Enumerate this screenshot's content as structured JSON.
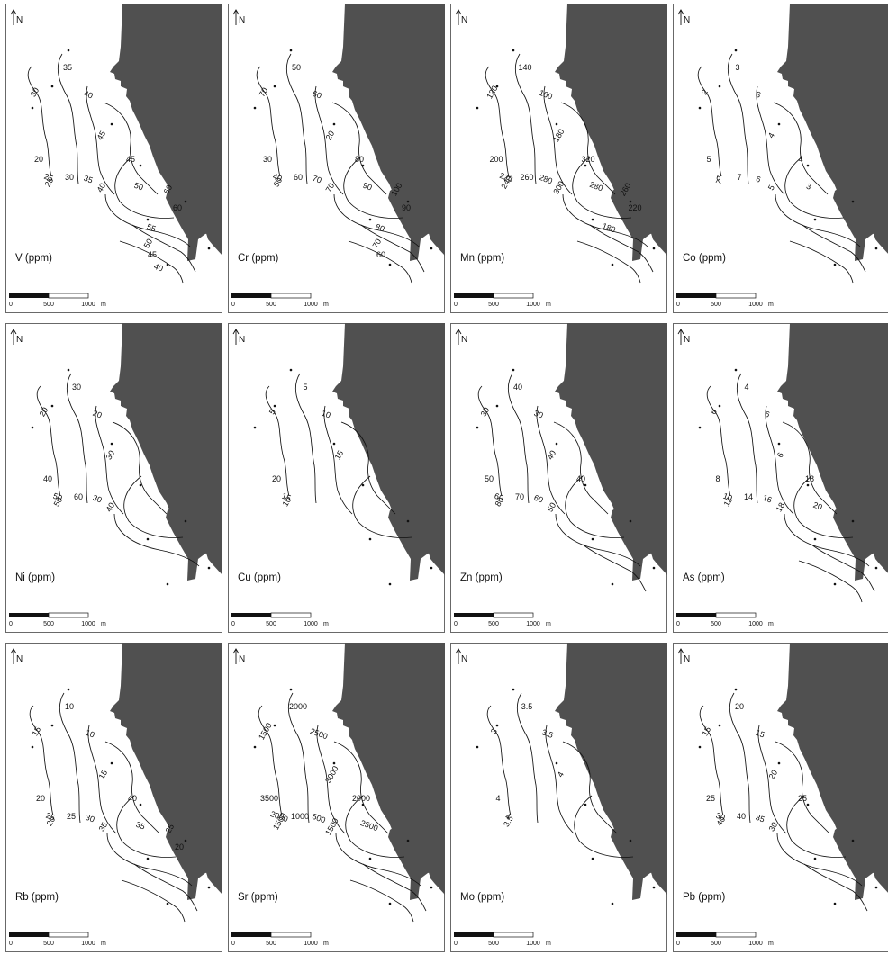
{
  "north_label": "N",
  "scale_labels": [
    "0",
    "500",
    "1000",
    "m"
  ],
  "panels": [
    {
      "id": "v",
      "title": "V (ppm)",
      "labels": [
        "30",
        "35",
        "40",
        "45",
        "20",
        "25",
        "25",
        "30",
        "35",
        "40",
        "45",
        "50",
        "60",
        "60",
        "55",
        "50",
        "45",
        "40"
      ]
    },
    {
      "id": "cr",
      "title": "Cr (ppm)",
      "labels": [
        "70",
        "50",
        "60",
        "20",
        "30",
        "40",
        "50",
        "60",
        "70",
        "70",
        "80",
        "90",
        "100",
        "90",
        "80",
        "70",
        "60"
      ]
    },
    {
      "id": "mn",
      "title": "Mn (ppm)",
      "labels": [
        "120",
        "140",
        "160",
        "180",
        "200",
        "220",
        "240",
        "260",
        "280",
        "300",
        "320",
        "280",
        "260",
        "220",
        "180"
      ]
    },
    {
      "id": "co",
      "title": "Co (ppm)",
      "labels": [
        "2",
        "3",
        "3",
        "4",
        "5",
        "6",
        "7",
        "7",
        "6",
        "5",
        "4",
        "3"
      ]
    },
    {
      "id": "ni",
      "title": "Ni (ppm)",
      "labels": [
        "20",
        "30",
        "20",
        "30",
        "40",
        "50",
        "50",
        "60",
        "30",
        "40"
      ]
    },
    {
      "id": "cu",
      "title": "Cu (ppm)",
      "labels": [
        "5",
        "5",
        "10",
        "15",
        "20",
        "15",
        "10"
      ]
    },
    {
      "id": "zn",
      "title": "Zn (ppm)",
      "labels": [
        "30",
        "40",
        "30",
        "40",
        "50",
        "60",
        "80",
        "70",
        "60",
        "50",
        "40"
      ]
    },
    {
      "id": "as",
      "title": "As (ppm)",
      "labels": [
        "6",
        "4",
        "6",
        "6",
        "8",
        "10",
        "12",
        "14",
        "16",
        "18",
        "18",
        "20"
      ]
    },
    {
      "id": "rb",
      "title": "Rb (ppm)",
      "labels": [
        "15",
        "10",
        "10",
        "15",
        "20",
        "25",
        "20",
        "25",
        "30",
        "35",
        "40",
        "35",
        "25",
        "20"
      ]
    },
    {
      "id": "sr",
      "title": "Sr (ppm)",
      "labels": [
        "1500",
        "2000",
        "2500",
        "3000",
        "3500",
        "2000",
        "1500",
        "1000",
        "500",
        "1500",
        "2000",
        "2500"
      ]
    },
    {
      "id": "mo",
      "title": "Mo (ppm)",
      "labels": [
        "3",
        "3.5",
        "3.5",
        "4",
        "4",
        "4",
        "3.5"
      ]
    },
    {
      "id": "pb",
      "title": "Pb (ppm)",
      "labels": [
        "15",
        "20",
        "15",
        "20",
        "25",
        "30",
        "40",
        "40",
        "35",
        "30",
        "25"
      ]
    }
  ]
}
